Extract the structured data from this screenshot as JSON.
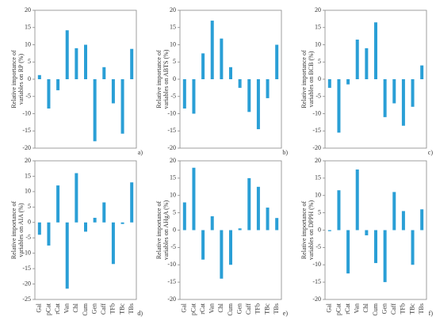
{
  "chart_data": [
    {
      "type": "bar",
      "panel": "a)",
      "ylabel": [
        "Relative importance of",
        "variables on RP (%)"
      ],
      "color": "#2a9fd6",
      "values": [
        1.2,
        -8.5,
        -3.2,
        14.2,
        9,
        10,
        -18,
        3.5,
        -7,
        -15.8,
        8.8
      ],
      "ylim": [
        -20,
        20
      ],
      "yticks": [
        -20,
        -15,
        -10,
        -5,
        0,
        5,
        10,
        15,
        20
      ]
    },
    {
      "type": "bar",
      "panel": "b)",
      "ylabel": [
        "Relative importance of",
        "variables on ABTS (%)"
      ],
      "color": "#2a9fd6",
      "values": [
        -8.5,
        -10,
        7.5,
        17,
        11.8,
        3.5,
        -2.5,
        -9.5,
        -14.5,
        -5.5,
        10
      ],
      "ylim": [
        -20,
        20
      ],
      "yticks": [
        -20,
        -15,
        -10,
        -5,
        0,
        5,
        10,
        15,
        20
      ]
    },
    {
      "type": "bar",
      "panel": "c)",
      "ylabel": [
        "Relative importance of",
        "variables on BCB (%)"
      ],
      "color": "#2a9fd6",
      "values": [
        -2.5,
        -15.5,
        -1.5,
        11.5,
        9,
        16.5,
        -11,
        -7,
        -13.5,
        -8,
        4
      ],
      "ylim": [
        -20,
        20
      ],
      "yticks": [
        -20,
        -15,
        -10,
        -5,
        0,
        5,
        10,
        15,
        20
      ]
    },
    {
      "type": "bar",
      "panel": "d)",
      "ylabel": [
        "Relative importance of",
        "variables on AIA (%)"
      ],
      "color": "#2a9fd6",
      "categories": [
        "Gal",
        "pCat",
        "rCat",
        "Van",
        "Chl",
        "Cum",
        "Gen",
        "Caff",
        "TFb",
        "TBc",
        "TBs"
      ],
      "category_colors": [
        "#222",
        "#222",
        "#222",
        "#222",
        "#222",
        "#222",
        "#222",
        "#222",
        "#e0302a",
        "#e0302a",
        "#e0302a"
      ],
      "values": [
        -4,
        -7.5,
        12,
        -21.5,
        16,
        -3,
        1.5,
        6.5,
        -13.5,
        -0.5,
        13
      ],
      "ylim": [
        -25,
        20
      ],
      "yticks": [
        -25,
        -20,
        -15,
        -10,
        -5,
        0,
        5,
        10,
        15,
        20
      ]
    },
    {
      "type": "bar",
      "panel": "e)",
      "ylabel": [
        "Relative importance of",
        "variables on AHgA (%)"
      ],
      "color": "#2a9fd6",
      "categories": [
        "Gal",
        "pCat",
        "rCat",
        "Van",
        "Chl",
        "Cum",
        "Gen",
        "Caff",
        "TFb",
        "TBc",
        "TBs"
      ],
      "category_colors": [
        "#222",
        "#222",
        "#222",
        "#222",
        "#222",
        "#222",
        "#222",
        "#222",
        "#e0302a",
        "#e0302a",
        "#e0302a"
      ],
      "values": [
        8,
        18,
        -8.5,
        4,
        -14,
        -10,
        0.5,
        15,
        12.5,
        6.5,
        3.5
      ],
      "ylim": [
        -20,
        20
      ],
      "yticks": [
        -20,
        -15,
        -10,
        -5,
        0,
        5,
        10,
        15,
        20
      ]
    },
    {
      "type": "bar",
      "panel": "f)",
      "ylabel": [
        "Relative importance of",
        "variables on DPPH (%)"
      ],
      "color": "#2a9fd6",
      "categories": [
        "Gal",
        "pCat",
        "rCat",
        "Van",
        "Chl",
        "Cum",
        "Gen",
        "Caff",
        "TFb",
        "TBc",
        "TBs"
      ],
      "category_colors": [
        "#222",
        "#222",
        "#222",
        "#222",
        "#222",
        "#222",
        "#222",
        "#222",
        "#e0302a",
        "#e0302a",
        "#e0302a"
      ],
      "values": [
        -0.3,
        11.5,
        -12.5,
        17.5,
        -1.5,
        -9.5,
        -15,
        11,
        5.5,
        -10,
        6
      ],
      "ylim": [
        -20,
        20
      ],
      "yticks": [
        -20,
        -15,
        -10,
        -5,
        0,
        5,
        10,
        15,
        20
      ]
    }
  ]
}
